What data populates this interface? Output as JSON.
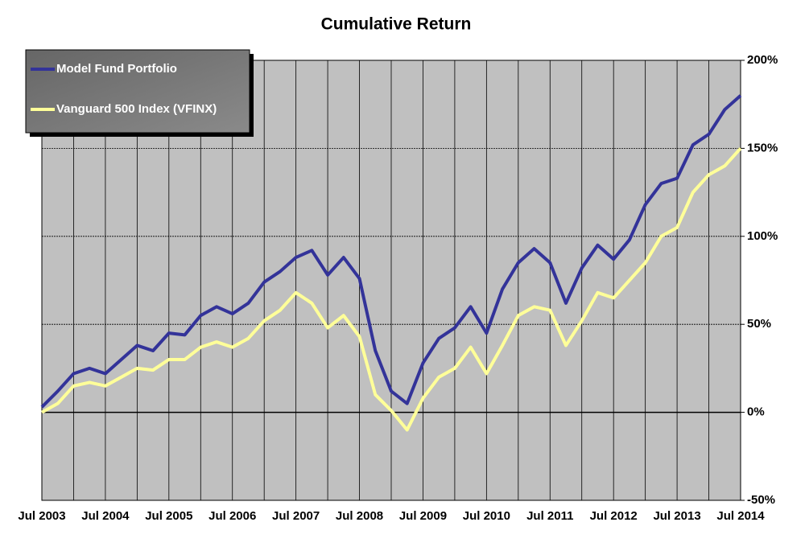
{
  "chart_data": {
    "type": "line",
    "title": "Cumulative Return",
    "categories": [
      "Jul 2003",
      null,
      null,
      null,
      "Jul 2004",
      null,
      null,
      null,
      "Jul 2005",
      null,
      null,
      null,
      "Jul 2006",
      null,
      null,
      null,
      "Jul 2007",
      null,
      null,
      null,
      "Jul 2008",
      null,
      null,
      null,
      "Jul 2009",
      null,
      null,
      null,
      "Jul 2010",
      null,
      null,
      null,
      "Jul 2011",
      null,
      null,
      null,
      "Jul 2012",
      null,
      null,
      null,
      "Jul 2013",
      null,
      null,
      null,
      "Jul 2014"
    ],
    "series": [
      {
        "name": "Model Fund Portfolio",
        "color": "#333399",
        "values": [
          3,
          12,
          22,
          25,
          22,
          30,
          38,
          35,
          45,
          44,
          55,
          60,
          56,
          62,
          74,
          80,
          88,
          92,
          78,
          88,
          76,
          35,
          12,
          5,
          28,
          42,
          48,
          60,
          45,
          70,
          85,
          93,
          85,
          62,
          82,
          95,
          87,
          98,
          118,
          130,
          133,
          152,
          158,
          172,
          180
        ]
      },
      {
        "name": "Vanguard 500 Index (VFINX)",
        "color": "#ffff99",
        "values": [
          0,
          5,
          15,
          17,
          15,
          20,
          25,
          24,
          30,
          30,
          37,
          40,
          37,
          42,
          52,
          58,
          68,
          62,
          48,
          55,
          43,
          10,
          1,
          -10,
          8,
          20,
          25,
          37,
          22,
          38,
          55,
          60,
          58,
          38,
          52,
          68,
          65,
          75,
          85,
          100,
          105,
          125,
          135,
          140,
          150
        ]
      }
    ],
    "ylim": [
      -50,
      200
    ],
    "yticks": [
      {
        "value": -50,
        "label": "-50%"
      },
      {
        "value": 0,
        "label": "0%"
      },
      {
        "value": 50,
        "label": "50%"
      },
      {
        "value": 100,
        "label": "100%"
      },
      {
        "value": 150,
        "label": "150%"
      },
      {
        "value": 200,
        "label": "200%"
      }
    ],
    "grid": true,
    "legend": "top-left"
  }
}
